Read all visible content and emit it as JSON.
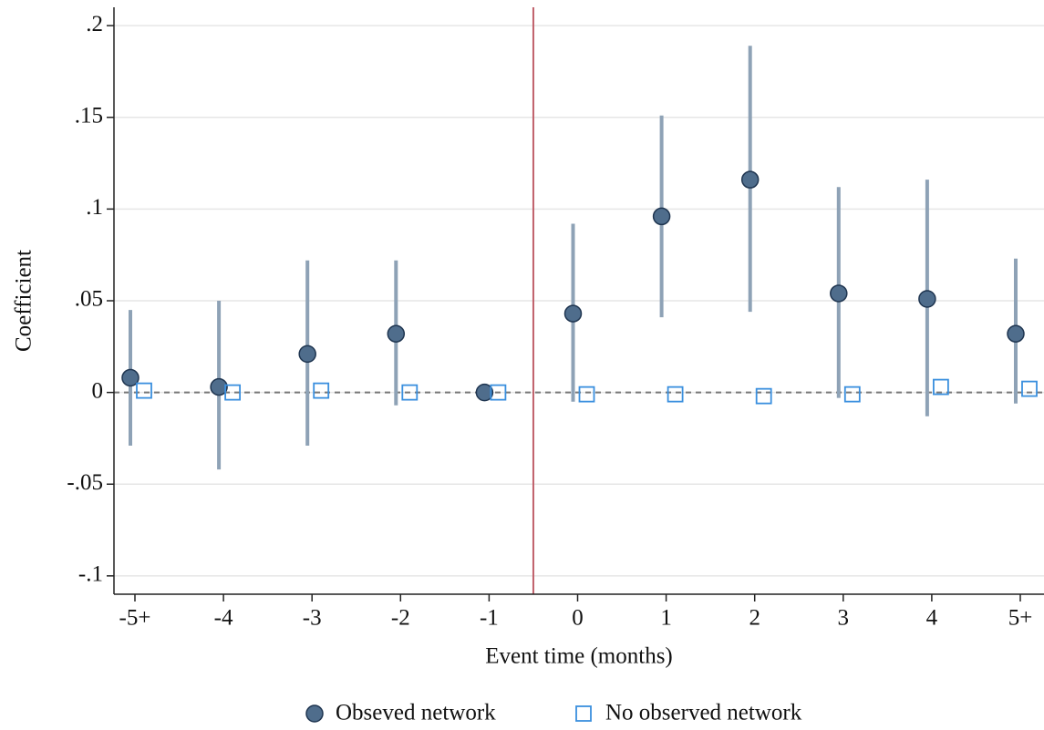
{
  "chart_data": {
    "type": "errorbar",
    "categories": [
      "-5+",
      "-4",
      "-3",
      "-2",
      "-1",
      "0",
      "1",
      "2",
      "3",
      "4",
      "5+"
    ],
    "x_label": "Event time (months)",
    "y_label": "Coefficient",
    "ylim": [
      -0.11,
      0.21
    ],
    "yticks": [
      {
        "value": -0.1,
        "label": "-.1"
      },
      {
        "value": -0.05,
        "label": "-.05"
      },
      0,
      {
        "value": 0.05,
        "label": ".05"
      },
      {
        "value": 0.1,
        "label": ".1"
      },
      {
        "value": 0.15,
        "label": ".15"
      },
      {
        "value": 0.2,
        "label": ".2"
      }
    ],
    "grid": true,
    "series": [
      {
        "name": "Obseved network",
        "color": "#4f6d8c",
        "ci_color": "#8ea2b6",
        "values": [
          0.008,
          0.003,
          0.021,
          0.032,
          0,
          0.043,
          0.096,
          0.116,
          0.054,
          0.051,
          0.032
        ],
        "lower": [
          -0.029,
          -0.042,
          -0.029,
          -0.007,
          null,
          -0.005,
          0.041,
          0.044,
          -0.003,
          -0.013,
          -0.006
        ],
        "upper": [
          0.045,
          0.05,
          0.072,
          0.072,
          null,
          0.092,
          0.151,
          0.189,
          0.112,
          0.116,
          0.073
        ]
      },
      {
        "name": "No observed network",
        "color": "#3a8fde",
        "values": [
          0.001,
          0,
          0.001,
          0,
          0,
          -0.001,
          -0.001,
          -0.002,
          -0.001,
          0.003,
          0.002
        ]
      }
    ]
  }
}
